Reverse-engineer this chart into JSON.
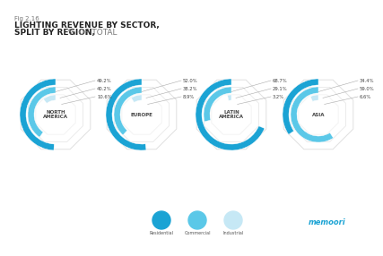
{
  "title_fig": "Fig 2.16",
  "title_line1": "LIGHTING REVENUE BY SECTOR,",
  "title_line2": "SPLIT BY REGION,",
  "title_line2b": " % OF TOTAL",
  "regions": [
    "NORTH\nAMERICA",
    "EUROPE",
    "LATIN\nAMERICA",
    "ASIA"
  ],
  "data": {
    "NORTH\nAMERICA": [
      49.2,
      40.2,
      10.6
    ],
    "EUROPE": [
      52.0,
      38.2,
      8.9
    ],
    "LATIN\nAMERICA": [
      68.7,
      29.1,
      3.2
    ],
    "ASIA": [
      34.4,
      59.0,
      6.6
    ]
  },
  "labels": {
    "NORTH\nAMERICA": [
      "49.2%",
      "40.2%",
      "10.6%"
    ],
    "EUROPE": [
      "52.0%",
      "38.2%",
      "8.9%"
    ],
    "LATIN\nAMERICA": [
      "68.7%",
      "29.1%",
      "3.2%"
    ],
    "ASIA": [
      "34.4%",
      "59.0%",
      "6.6%"
    ]
  },
  "sector_colors": [
    "#1BA3D4",
    "#5BC8E8",
    "#C6E8F5"
  ],
  "octagon_colors": [
    "#E0E0E0",
    "#EBEBEB",
    "#F3F3F3"
  ],
  "bg_color": "#FFFFFF",
  "legend_labels": [
    "Residential",
    "Commercial",
    "Industrial"
  ],
  "legend_colors": [
    "#1BA3D4",
    "#5BC8E8",
    "#C6E8F5"
  ],
  "center_label_color": "#444444",
  "label_color": "#444444",
  "memoori_color": "#1BA3D4"
}
